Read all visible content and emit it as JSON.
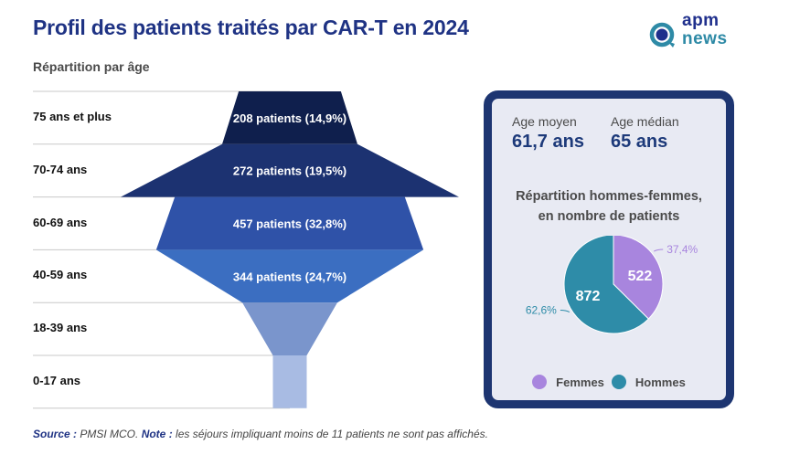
{
  "header": {
    "title": "Profil des patients traités par CAR-T en 2024",
    "subtitle": "Répartition par âge"
  },
  "logo": {
    "line1": "apm",
    "line2": "news",
    "icon": "magnifier-q-icon"
  },
  "colors": {
    "title": "#1f3384",
    "funnel": [
      "#0f1f4d",
      "#1c3271",
      "#2f52a8",
      "#3b6ec1",
      "#7a95cc",
      "#a8bbe3"
    ],
    "femmes": "#a885de",
    "hommes": "#2e8ca8",
    "panel_border": "#1d3571",
    "panel_bg": "#e8eaf3"
  },
  "chart_data": [
    {
      "type": "funnel",
      "title": "Répartition par âge",
      "categories": [
        "75 ans et plus",
        "70-74 ans",
        "60-69 ans",
        "40-59 ans",
        "18-39 ans",
        "0-17 ans"
      ],
      "values": [
        208,
        272,
        457,
        344,
        null,
        null
      ],
      "percents": [
        "14,9%",
        "19,5%",
        "32,8%",
        "24,7%",
        null,
        null
      ],
      "labels": [
        "208 patients (14,9%)",
        "272 patients (19,5%)",
        "457 patients (32,8%)",
        "344 patients (24,7%)",
        "",
        ""
      ],
      "relative_widths": [
        0.4,
        0.68,
        1.0,
        0.72,
        0.29,
        0.1
      ]
    },
    {
      "type": "pie",
      "title": "Répartition hommes-femmes, en nombre de patients",
      "slices": [
        {
          "name": "Femmes",
          "value": 522,
          "percent": "37,4%"
        },
        {
          "name": "Hommes",
          "value": 872,
          "percent": "62,6%"
        }
      ],
      "legend": "bottom"
    }
  ],
  "panel": {
    "stats": [
      {
        "label": "Age moyen",
        "value": "61,7 ans"
      },
      {
        "label": "Age médian",
        "value": "65 ans"
      }
    ],
    "pie_title_line1": "Répartition hommes-femmes,",
    "pie_title_line2": "en nombre de patients",
    "legend": [
      "Femmes",
      "Hommes"
    ]
  },
  "footer": {
    "source_label": "Source :",
    "source_text": " PMSI MCO. ",
    "note_label": "Note :",
    "note_text": " les séjours impliquant moins de 11 patients ne sont pas affichés."
  }
}
